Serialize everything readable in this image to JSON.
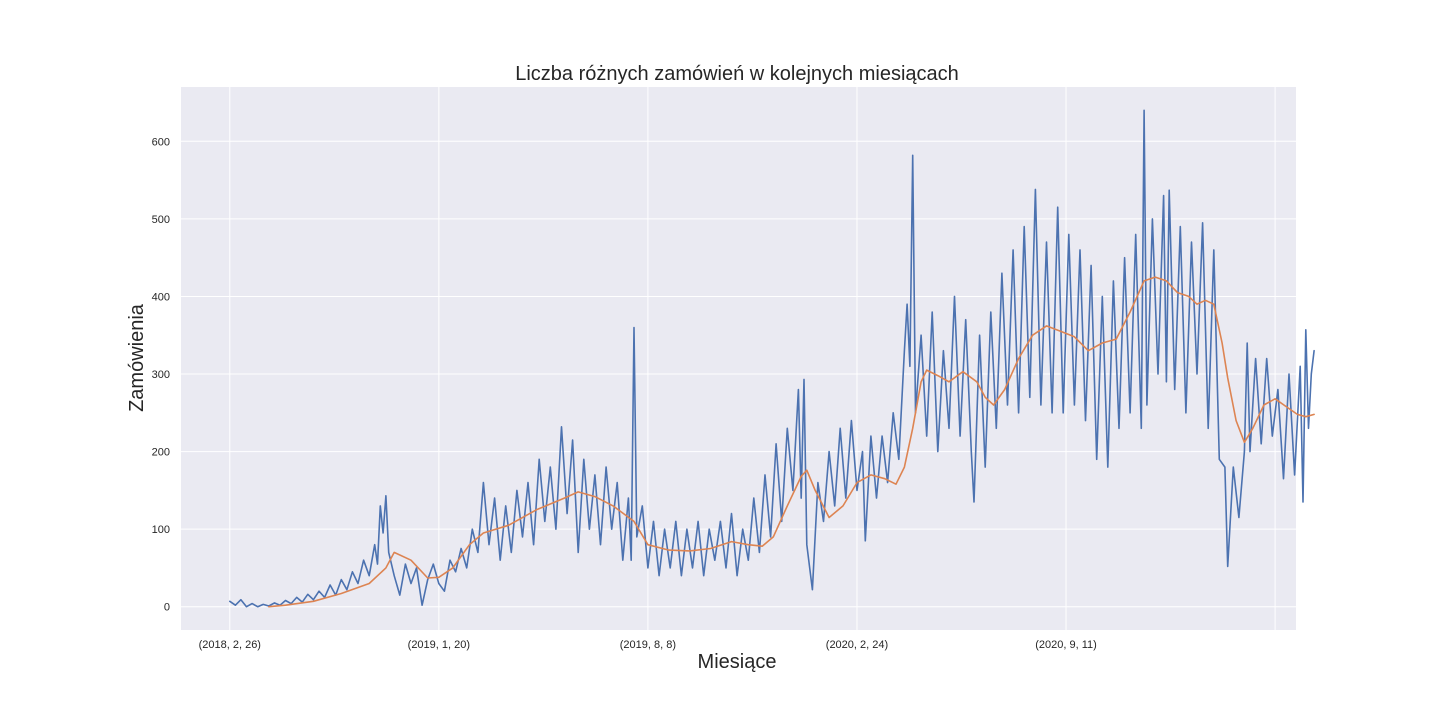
{
  "chart_data": {
    "type": "line",
    "title": "Liczba różnych zamówień w kolejnych miesiącach",
    "xlabel": "Miesiące",
    "ylabel": "Zamówienia",
    "x_tick_labels": [
      "(2018, 2, 26)",
      "(2019, 1, 20)",
      "(2019, 8, 8)",
      "(2020, 2, 24)",
      "(2020, 9, 11)"
    ],
    "x_tick_positions": [
      0,
      150,
      300,
      450,
      600
    ],
    "x_range": [
      -35,
      765
    ],
    "y_ticks": [
      0,
      100,
      200,
      300,
      400,
      500,
      600
    ],
    "ylim": [
      -30,
      670
    ],
    "grid": true,
    "series": [
      {
        "key": "daily",
        "color": "#4c72b0",
        "points": [
          [
            0,
            7
          ],
          [
            4,
            2
          ],
          [
            8,
            9
          ],
          [
            12,
            0
          ],
          [
            16,
            4
          ],
          [
            20,
            0
          ],
          [
            24,
            3
          ],
          [
            28,
            1
          ],
          [
            32,
            5
          ],
          [
            36,
            2
          ],
          [
            40,
            8
          ],
          [
            44,
            4
          ],
          [
            48,
            12
          ],
          [
            52,
            6
          ],
          [
            56,
            16
          ],
          [
            60,
            9
          ],
          [
            64,
            20
          ],
          [
            68,
            12
          ],
          [
            72,
            28
          ],
          [
            76,
            15
          ],
          [
            80,
            35
          ],
          [
            84,
            22
          ],
          [
            88,
            45
          ],
          [
            92,
            30
          ],
          [
            96,
            60
          ],
          [
            100,
            40
          ],
          [
            104,
            80
          ],
          [
            106,
            55
          ],
          [
            108,
            130
          ],
          [
            110,
            95
          ],
          [
            112,
            143
          ],
          [
            114,
            70
          ],
          [
            118,
            40
          ],
          [
            122,
            15
          ],
          [
            126,
            55
          ],
          [
            130,
            30
          ],
          [
            134,
            50
          ],
          [
            138,
            2
          ],
          [
            142,
            35
          ],
          [
            146,
            55
          ],
          [
            150,
            30
          ],
          [
            154,
            20
          ],
          [
            158,
            60
          ],
          [
            162,
            45
          ],
          [
            166,
            75
          ],
          [
            170,
            50
          ],
          [
            174,
            100
          ],
          [
            178,
            70
          ],
          [
            182,
            160
          ],
          [
            186,
            80
          ],
          [
            190,
            140
          ],
          [
            194,
            60
          ],
          [
            198,
            130
          ],
          [
            202,
            70
          ],
          [
            206,
            150
          ],
          [
            210,
            90
          ],
          [
            214,
            160
          ],
          [
            218,
            80
          ],
          [
            222,
            190
          ],
          [
            226,
            110
          ],
          [
            230,
            180
          ],
          [
            234,
            100
          ],
          [
            238,
            232
          ],
          [
            242,
            120
          ],
          [
            246,
            215
          ],
          [
            250,
            70
          ],
          [
            254,
            190
          ],
          [
            258,
            100
          ],
          [
            262,
            170
          ],
          [
            266,
            80
          ],
          [
            270,
            180
          ],
          [
            274,
            100
          ],
          [
            278,
            160
          ],
          [
            282,
            60
          ],
          [
            286,
            140
          ],
          [
            288,
            60
          ],
          [
            290,
            360
          ],
          [
            292,
            90
          ],
          [
            296,
            130
          ],
          [
            300,
            50
          ],
          [
            304,
            110
          ],
          [
            308,
            40
          ],
          [
            312,
            100
          ],
          [
            316,
            50
          ],
          [
            320,
            110
          ],
          [
            324,
            40
          ],
          [
            328,
            100
          ],
          [
            332,
            50
          ],
          [
            336,
            110
          ],
          [
            340,
            40
          ],
          [
            344,
            100
          ],
          [
            348,
            60
          ],
          [
            352,
            110
          ],
          [
            356,
            50
          ],
          [
            360,
            120
          ],
          [
            364,
            40
          ],
          [
            368,
            100
          ],
          [
            372,
            60
          ],
          [
            376,
            140
          ],
          [
            380,
            70
          ],
          [
            384,
            170
          ],
          [
            388,
            90
          ],
          [
            392,
            210
          ],
          [
            396,
            110
          ],
          [
            400,
            230
          ],
          [
            404,
            150
          ],
          [
            408,
            280
          ],
          [
            410,
            140
          ],
          [
            412,
            293
          ],
          [
            414,
            80
          ],
          [
            418,
            22
          ],
          [
            422,
            160
          ],
          [
            426,
            110
          ],
          [
            430,
            200
          ],
          [
            434,
            130
          ],
          [
            438,
            230
          ],
          [
            442,
            140
          ],
          [
            446,
            240
          ],
          [
            450,
            150
          ],
          [
            454,
            200
          ],
          [
            456,
            85
          ],
          [
            460,
            220
          ],
          [
            464,
            140
          ],
          [
            468,
            220
          ],
          [
            472,
            160
          ],
          [
            476,
            250
          ],
          [
            480,
            190
          ],
          [
            484,
            330
          ],
          [
            486,
            390
          ],
          [
            488,
            310
          ],
          [
            490,
            582
          ],
          [
            492,
            250
          ],
          [
            496,
            350
          ],
          [
            500,
            220
          ],
          [
            504,
            380
          ],
          [
            508,
            200
          ],
          [
            512,
            330
          ],
          [
            516,
            230
          ],
          [
            520,
            400
          ],
          [
            524,
            220
          ],
          [
            528,
            370
          ],
          [
            532,
            200
          ],
          [
            534,
            135
          ],
          [
            538,
            350
          ],
          [
            542,
            180
          ],
          [
            546,
            380
          ],
          [
            550,
            230
          ],
          [
            554,
            430
          ],
          [
            558,
            260
          ],
          [
            562,
            460
          ],
          [
            566,
            250
          ],
          [
            570,
            490
          ],
          [
            574,
            270
          ],
          [
            578,
            538
          ],
          [
            582,
            260
          ],
          [
            586,
            470
          ],
          [
            590,
            250
          ],
          [
            594,
            515
          ],
          [
            598,
            250
          ],
          [
            602,
            480
          ],
          [
            606,
            260
          ],
          [
            610,
            460
          ],
          [
            614,
            240
          ],
          [
            618,
            440
          ],
          [
            622,
            190
          ],
          [
            626,
            400
          ],
          [
            630,
            180
          ],
          [
            634,
            420
          ],
          [
            638,
            230
          ],
          [
            642,
            450
          ],
          [
            646,
            250
          ],
          [
            650,
            480
          ],
          [
            654,
            230
          ],
          [
            656,
            640
          ],
          [
            658,
            260
          ],
          [
            662,
            500
          ],
          [
            666,
            300
          ],
          [
            670,
            530
          ],
          [
            672,
            290
          ],
          [
            674,
            537
          ],
          [
            678,
            280
          ],
          [
            682,
            490
          ],
          [
            686,
            250
          ],
          [
            690,
            470
          ],
          [
            694,
            300
          ],
          [
            698,
            495
          ],
          [
            702,
            230
          ],
          [
            706,
            460
          ],
          [
            710,
            190
          ],
          [
            714,
            180
          ],
          [
            716,
            52
          ],
          [
            720,
            180
          ],
          [
            724,
            115
          ],
          [
            728,
            200
          ],
          [
            730,
            340
          ],
          [
            732,
            200
          ],
          [
            736,
            320
          ],
          [
            740,
            210
          ],
          [
            744,
            320
          ],
          [
            748,
            220
          ],
          [
            752,
            280
          ],
          [
            756,
            165
          ],
          [
            760,
            300
          ],
          [
            764,
            170
          ],
          [
            768,
            310
          ],
          [
            770,
            135
          ],
          [
            772,
            357
          ],
          [
            774,
            230
          ],
          [
            776,
            300
          ],
          [
            778,
            330
          ]
        ]
      },
      {
        "key": "moving_average",
        "color": "#dd8452",
        "points": [
          [
            28,
            0
          ],
          [
            40,
            2
          ],
          [
            60,
            7
          ],
          [
            80,
            17
          ],
          [
            100,
            30
          ],
          [
            112,
            50
          ],
          [
            118,
            70
          ],
          [
            130,
            60
          ],
          [
            142,
            37
          ],
          [
            150,
            38
          ],
          [
            160,
            50
          ],
          [
            172,
            80
          ],
          [
            182,
            95
          ],
          [
            200,
            105
          ],
          [
            220,
            125
          ],
          [
            240,
            140
          ],
          [
            250,
            148
          ],
          [
            262,
            142
          ],
          [
            275,
            130
          ],
          [
            290,
            110
          ],
          [
            300,
            80
          ],
          [
            315,
            73
          ],
          [
            330,
            72
          ],
          [
            345,
            75
          ],
          [
            360,
            84
          ],
          [
            372,
            80
          ],
          [
            382,
            78
          ],
          [
            390,
            90
          ],
          [
            400,
            130
          ],
          [
            410,
            168
          ],
          [
            414,
            176
          ],
          [
            420,
            150
          ],
          [
            430,
            115
          ],
          [
            440,
            130
          ],
          [
            450,
            160
          ],
          [
            460,
            170
          ],
          [
            470,
            165
          ],
          [
            478,
            158
          ],
          [
            484,
            180
          ],
          [
            490,
            230
          ],
          [
            496,
            290
          ],
          [
            500,
            305
          ],
          [
            508,
            298
          ],
          [
            516,
            290
          ],
          [
            526,
            303
          ],
          [
            536,
            290
          ],
          [
            542,
            270
          ],
          [
            548,
            260
          ],
          [
            556,
            280
          ],
          [
            566,
            320
          ],
          [
            576,
            350
          ],
          [
            586,
            362
          ],
          [
            596,
            355
          ],
          [
            606,
            348
          ],
          [
            616,
            330
          ],
          [
            626,
            340
          ],
          [
            636,
            345
          ],
          [
            646,
            380
          ],
          [
            656,
            420
          ],
          [
            664,
            425
          ],
          [
            672,
            420
          ],
          [
            680,
            405
          ],
          [
            688,
            400
          ],
          [
            694,
            390
          ],
          [
            700,
            395
          ],
          [
            706,
            390
          ],
          [
            712,
            340
          ],
          [
            716,
            295
          ],
          [
            722,
            240
          ],
          [
            728,
            212
          ],
          [
            734,
            230
          ],
          [
            742,
            260
          ],
          [
            750,
            268
          ],
          [
            758,
            258
          ],
          [
            766,
            248
          ],
          [
            772,
            245
          ],
          [
            778,
            248
          ]
        ]
      }
    ]
  }
}
